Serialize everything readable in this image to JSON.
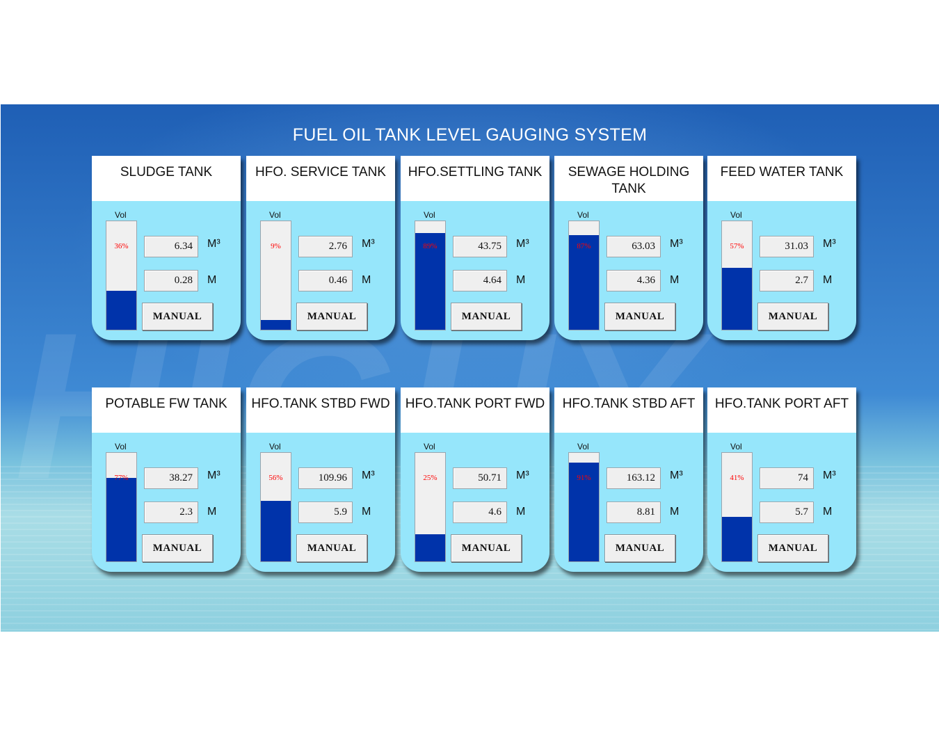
{
  "title": "FUEL OIL TANK LEVEL GAUGING SYSTEM",
  "labels": {
    "vol": "Vol",
    "unit_volume": "M³",
    "unit_level": "M",
    "manual_button": "MANUAL"
  },
  "colors": {
    "fill": "#0033aa",
    "panel": "#96e6fb",
    "percent_text": "#ff0000"
  },
  "tanks": [
    {
      "name": "SLUDGE TANK",
      "percent_label": "36%",
      "fill_fraction": 0.36,
      "volume": "6.34",
      "level": "0.28"
    },
    {
      "name": "HFO. SERVICE TANK",
      "percent_label": "9%",
      "fill_fraction": 0.09,
      "volume": "2.76",
      "level": "0.46"
    },
    {
      "name": "HFO.SETTLING TANK",
      "percent_label": "89%",
      "fill_fraction": 0.89,
      "volume": "43.75",
      "level": "4.64"
    },
    {
      "name": "SEWAGE HOLDING TANK",
      "percent_label": "87%",
      "fill_fraction": 0.87,
      "volume": "63.03",
      "level": "4.36"
    },
    {
      "name": "FEED WATER TANK",
      "percent_label": "57%",
      "fill_fraction": 0.57,
      "volume": "31.03",
      "level": "2.7"
    },
    {
      "name": "POTABLE FW TANK",
      "percent_label": "77%",
      "fill_fraction": 0.77,
      "volume": "38.27",
      "level": "2.3"
    },
    {
      "name": "HFO.TANK STBD FWD",
      "percent_label": "56%",
      "fill_fraction": 0.56,
      "volume": "109.96",
      "level": "5.9"
    },
    {
      "name": "HFO.TANK PORT FWD",
      "percent_label": "25%",
      "fill_fraction": 0.25,
      "volume": "50.71",
      "level": "4.6"
    },
    {
      "name": "HFO.TANK STBD AFT",
      "percent_label": "91%",
      "fill_fraction": 0.91,
      "volume": "163.12",
      "level": "8.81"
    },
    {
      "name": "HFO.TANK PORT AFT",
      "percent_label": "41%",
      "fill_fraction": 0.41,
      "volume": "74",
      "level": "5.7"
    }
  ]
}
